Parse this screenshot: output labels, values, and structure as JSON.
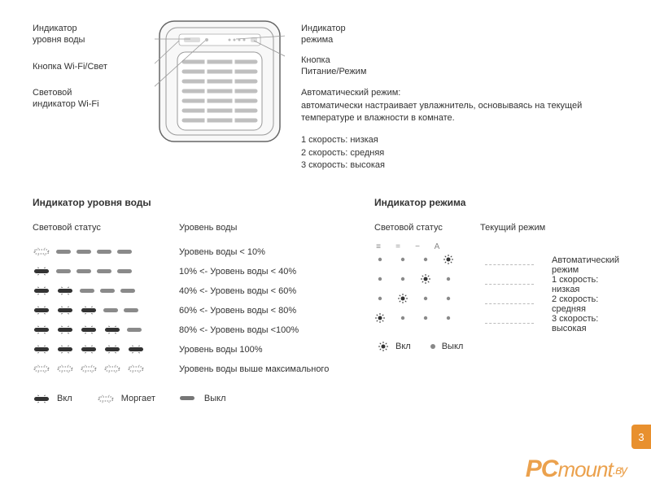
{
  "colors": {
    "text": "#333333",
    "muted": "#888888",
    "accent": "#e8902e",
    "device_outline": "#666666",
    "device_fill": "#f6f6f6",
    "grill": "#bfbfbf",
    "dash": "#bbbbbb"
  },
  "device": {
    "labels_left": {
      "water_indicator": "Индикатор\nуровня воды",
      "wifi_button": "Кнопка Wi-Fi/Свет",
      "wifi_light": "Световой\nиндикатор Wi-Fi"
    },
    "labels_right": {
      "mode_indicator": "Индикатор\nрежима",
      "power_button": "Кнопка\nПитание/Режим"
    },
    "auto_mode_title": "Автоматический режим:",
    "auto_mode_desc": "автоматически настраивает увлажнитель, основываясь на текущей температуре и влажности в комнате.",
    "speeds": [
      "1 скорость: низкая",
      "2 скорость: средняя",
      "3 скорость: высокая"
    ]
  },
  "water_section": {
    "title": "Индикатор уровня воды",
    "col_status": "Световой статус",
    "col_level": "Уровень воды",
    "rows": [
      {
        "pattern": [
          "blink",
          "off",
          "off",
          "off",
          "off"
        ],
        "text": "Уровень воды < 10%"
      },
      {
        "pattern": [
          "on",
          "off",
          "off",
          "off",
          "off"
        ],
        "text": "10% <- Уровень воды < 40%"
      },
      {
        "pattern": [
          "on",
          "on",
          "off",
          "off",
          "off"
        ],
        "text": "40% <- Уровень воды < 60%"
      },
      {
        "pattern": [
          "on",
          "on",
          "on",
          "off",
          "off"
        ],
        "text": "60% <- Уровень воды < 80%"
      },
      {
        "pattern": [
          "on",
          "on",
          "on",
          "on",
          "off"
        ],
        "text": "80% <- Уровень воды <100%"
      },
      {
        "pattern": [
          "on",
          "on",
          "on",
          "on",
          "on"
        ],
        "text": "Уровень воды 100%"
      },
      {
        "pattern": [
          "blink",
          "blink",
          "blink",
          "blink",
          "blink"
        ],
        "text": "Уровень воды выше максимального"
      }
    ],
    "legend": {
      "on": "Вкл",
      "blink": "Моргает",
      "off": "Выкл"
    }
  },
  "mode_section": {
    "title": "Индикатор режима",
    "col_status": "Световой статус",
    "col_mode": "Текущий режим",
    "header_icons": [
      "≡",
      "=",
      "−",
      "A"
    ],
    "rows": [
      {
        "dots": [
          "off",
          "off",
          "off",
          "sun"
        ],
        "text": "Автоматический режим"
      },
      {
        "dots": [
          "off",
          "off",
          "sun",
          "off"
        ],
        "text": "1 скорость: низкая"
      },
      {
        "dots": [
          "off",
          "sun",
          "off",
          "off"
        ],
        "text": "2 скорость: средняя"
      },
      {
        "dots": [
          "sun",
          "off",
          "off",
          "off"
        ],
        "text": "3 скорость: высокая"
      }
    ],
    "legend": {
      "on": "Вкл",
      "off": "Выкл"
    }
  },
  "page_number": "3",
  "watermark": {
    "pc": "PC",
    "text": "mount",
    "tld": ".ву"
  }
}
